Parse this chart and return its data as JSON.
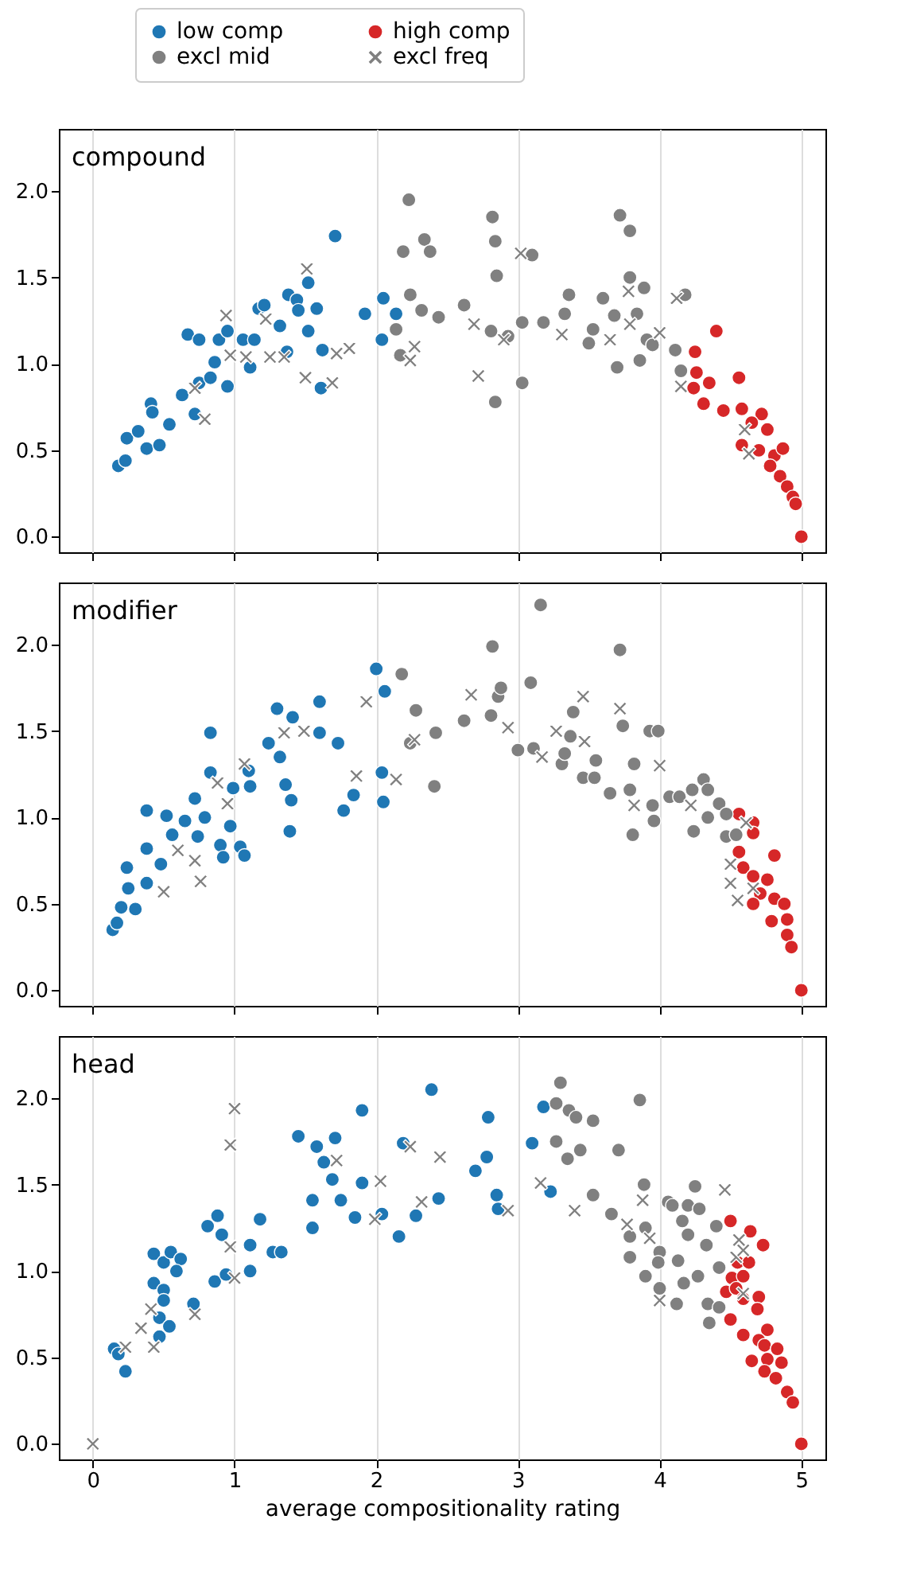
{
  "chart_data": [
    {
      "type": "scatter",
      "title": "compound",
      "legend": "top",
      "grid": "x",
      "tick_labels": "y",
      "xlim": [
        -0.24,
        5.17
      ],
      "ylim": [
        -0.09,
        2.36
      ],
      "xticks": [
        0,
        1,
        2,
        3,
        4,
        5
      ],
      "yticks": [
        {
          "value": 0,
          "label": "0.0"
        },
        {
          "value": 0.5,
          "label": "0.5"
        },
        {
          "value": 1,
          "label": "1.0"
        },
        {
          "value": 1.5,
          "label": "1.5"
        },
        {
          "value": 2,
          "label": "2.0"
        }
      ],
      "series": [
        {
          "name": "low comp",
          "color": "#1f77b4",
          "marker": "circle",
          "x": [
            0.18,
            0.23,
            0.24,
            0.32,
            0.38,
            0.47,
            0.41,
            0.42,
            0.54,
            0.63,
            0.72,
            0.75,
            0.83,
            0.86,
            0.95,
            0.67,
            0.75,
            0.89,
            0.95,
            1.06,
            1.11,
            1.14,
            1.17,
            1.21,
            1.32,
            1.38,
            1.44,
            1.45,
            1.52,
            1.58,
            1.52,
            1.62,
            1.61,
            1.71,
            1.37,
            1.92,
            2.05,
            2.14,
            2.04
          ],
          "values": [
            0.41,
            0.44,
            0.57,
            0.61,
            0.51,
            0.53,
            0.77,
            0.72,
            0.65,
            0.82,
            0.71,
            0.89,
            0.92,
            1.01,
            0.87,
            1.17,
            1.14,
            1.14,
            1.19,
            1.14,
            0.98,
            1.14,
            1.32,
            1.34,
            1.22,
            1.4,
            1.37,
            1.31,
            1.47,
            1.32,
            1.19,
            1.08,
            0.86,
            1.74,
            1.07,
            1.29,
            1.38,
            1.29,
            1.14
          ]
        },
        {
          "name": "high comp",
          "color": "#d62728",
          "marker": "circle",
          "x": [
            4.25,
            4.4,
            4.26,
            4.35,
            4.24,
            4.31,
            4.45,
            4.56,
            4.58,
            4.72,
            4.65,
            4.76,
            4.58,
            4.7,
            4.81,
            4.87,
            4.78,
            4.85,
            4.9,
            4.94,
            4.96,
            5.0
          ],
          "values": [
            1.07,
            1.19,
            0.95,
            0.89,
            0.86,
            0.77,
            0.73,
            0.92,
            0.74,
            0.71,
            0.66,
            0.62,
            0.53,
            0.5,
            0.47,
            0.51,
            0.41,
            0.35,
            0.29,
            0.23,
            0.19,
            0.0
          ]
        },
        {
          "name": "excl mid",
          "color": "#808080",
          "marker": "circle",
          "x": [
            2.23,
            2.19,
            2.34,
            2.38,
            2.24,
            2.32,
            2.44,
            2.14,
            2.17,
            2.62,
            2.82,
            2.84,
            2.85,
            2.81,
            2.93,
            2.84,
            3.03,
            3.03,
            3.1,
            3.18,
            3.33,
            3.36,
            3.53,
            3.5,
            3.6,
            3.68,
            3.7,
            3.72,
            3.79,
            3.79,
            3.89,
            3.84,
            3.86,
            3.91,
            3.95,
            4.11,
            4.18,
            4.15
          ],
          "values": [
            1.95,
            1.65,
            1.72,
            1.65,
            1.4,
            1.31,
            1.27,
            1.2,
            1.05,
            1.34,
            1.85,
            1.71,
            1.51,
            1.19,
            1.16,
            0.78,
            1.24,
            0.89,
            1.63,
            1.24,
            1.29,
            1.4,
            1.2,
            1.12,
            1.38,
            1.28,
            0.98,
            1.86,
            1.77,
            1.5,
            1.44,
            1.29,
            1.02,
            1.14,
            1.11,
            1.08,
            1.4,
            0.96
          ]
        },
        {
          "name": "excl freq",
          "color": "#808080",
          "marker": "cross",
          "x": [
            0.72,
            0.79,
            0.94,
            0.97,
            1.08,
            1.22,
            1.25,
            1.35,
            1.51,
            1.5,
            1.69,
            1.72,
            1.81,
            2.27,
            2.24,
            2.69,
            2.72,
            2.9,
            3.02,
            3.31,
            3.65,
            3.78,
            3.79,
            4.0,
            4.12,
            4.15,
            4.6,
            4.63
          ],
          "values": [
            0.86,
            0.68,
            1.28,
            1.05,
            1.04,
            1.26,
            1.04,
            1.04,
            1.55,
            0.92,
            0.89,
            1.06,
            1.09,
            1.1,
            1.02,
            1.23,
            0.93,
            1.14,
            1.64,
            1.17,
            1.14,
            1.42,
            1.23,
            1.18,
            1.38,
            0.87,
            0.62,
            0.48
          ]
        }
      ]
    },
    {
      "type": "scatter",
      "title": "modifier",
      "grid": "x",
      "tick_labels": "y",
      "xlim": [
        -0.24,
        5.17
      ],
      "ylim": [
        -0.09,
        2.36
      ],
      "xticks": [
        0,
        1,
        2,
        3,
        4,
        5
      ],
      "yticks": [
        {
          "value": 0,
          "label": "0.0"
        },
        {
          "value": 0.5,
          "label": "0.5"
        },
        {
          "value": 1,
          "label": "1.0"
        },
        {
          "value": 1.5,
          "label": "1.5"
        },
        {
          "value": 2,
          "label": "2.0"
        }
      ],
      "series": [
        {
          "color": "#1f77b4",
          "marker": "circle",
          "x": [
            0.14,
            0.17,
            0.2,
            0.25,
            0.3,
            0.24,
            0.38,
            0.38,
            0.38,
            0.48,
            0.52,
            0.56,
            0.65,
            0.72,
            0.74,
            0.79,
            0.83,
            0.83,
            0.9,
            0.92,
            0.97,
            0.99,
            1.04,
            1.07,
            1.1,
            1.11,
            1.24,
            1.3,
            1.32,
            1.36,
            1.4,
            1.39,
            1.41,
            1.6,
            1.6,
            1.73,
            1.77,
            1.84,
            2.0,
            2.06,
            2.04,
            2.05
          ],
          "values": [
            0.35,
            0.39,
            0.48,
            0.59,
            0.47,
            0.71,
            0.62,
            0.82,
            1.04,
            0.73,
            1.01,
            0.9,
            0.98,
            1.11,
            0.89,
            1.0,
            1.49,
            1.26,
            0.84,
            0.77,
            0.95,
            1.17,
            0.83,
            0.78,
            1.27,
            1.18,
            1.43,
            1.63,
            1.35,
            1.19,
            1.1,
            0.92,
            1.58,
            1.49,
            1.67,
            1.43,
            1.04,
            1.13,
            1.86,
            1.73,
            1.26,
            1.09
          ]
        },
        {
          "color": "#d62728",
          "marker": "circle",
          "x": [
            4.56,
            4.66,
            4.66,
            4.56,
            4.81,
            4.59,
            4.66,
            4.76,
            4.71,
            4.81,
            4.66,
            4.88,
            4.79,
            4.9,
            4.9,
            4.93,
            5.0
          ],
          "values": [
            1.02,
            0.97,
            0.91,
            0.8,
            0.78,
            0.71,
            0.66,
            0.64,
            0.56,
            0.53,
            0.5,
            0.5,
            0.4,
            0.41,
            0.32,
            0.25,
            0.0
          ]
        },
        {
          "color": "#808080",
          "marker": "circle",
          "x": [
            2.18,
            2.28,
            2.24,
            2.42,
            2.41,
            2.62,
            2.81,
            2.82,
            2.86,
            2.88,
            3.0,
            3.09,
            3.11,
            3.16,
            3.31,
            3.33,
            3.37,
            3.39,
            3.46,
            3.55,
            3.54,
            3.65,
            3.72,
            3.74,
            3.81,
            3.79,
            3.82,
            3.93,
            3.99,
            3.95,
            3.96,
            4.07,
            4.14,
            4.23,
            4.24,
            4.31,
            4.34,
            4.34,
            4.42,
            4.47,
            4.47,
            4.54
          ],
          "values": [
            1.83,
            1.62,
            1.43,
            1.49,
            1.18,
            1.56,
            1.59,
            1.99,
            1.7,
            1.75,
            1.39,
            1.78,
            1.4,
            2.23,
            1.31,
            1.37,
            1.47,
            1.61,
            1.23,
            1.33,
            1.23,
            1.14,
            1.97,
            1.53,
            0.9,
            1.16,
            1.31,
            1.5,
            1.5,
            1.07,
            0.98,
            1.12,
            1.12,
            1.16,
            0.92,
            1.22,
            1.16,
            1.0,
            1.08,
            1.02,
            0.89,
            0.9
          ]
        },
        {
          "color": "#808080",
          "marker": "cross",
          "x": [
            0.5,
            0.6,
            0.72,
            0.76,
            0.88,
            0.95,
            1.07,
            1.35,
            1.49,
            1.86,
            1.93,
            2.14,
            2.27,
            2.67,
            2.93,
            3.17,
            3.27,
            3.46,
            3.47,
            3.72,
            3.82,
            4.0,
            4.22,
            4.5,
            4.5,
            4.55,
            4.61,
            4.66
          ],
          "values": [
            0.57,
            0.81,
            0.75,
            0.63,
            1.2,
            1.08,
            1.31,
            1.49,
            1.5,
            1.24,
            1.67,
            1.22,
            1.45,
            1.71,
            1.52,
            1.35,
            1.5,
            1.7,
            1.44,
            1.63,
            1.07,
            1.3,
            1.07,
            0.73,
            0.62,
            0.52,
            0.97,
            0.59
          ]
        }
      ]
    },
    {
      "type": "scatter",
      "title": "head",
      "xlabel": "average compositionality rating",
      "grid": "x",
      "xlim": [
        -0.24,
        5.17
      ],
      "ylim": [
        -0.09,
        2.36
      ],
      "xticks": [
        0,
        1,
        2,
        3,
        4,
        5
      ],
      "yticks": [
        {
          "value": 0,
          "label": "0.0"
        },
        {
          "value": 0.5,
          "label": "0.5"
        },
        {
          "value": 1,
          "label": "1.0"
        },
        {
          "value": 1.5,
          "label": "1.5"
        },
        {
          "value": 2,
          "label": "2.0"
        }
      ],
      "series": [
        {
          "color": "#1f77b4",
          "marker": "circle",
          "x": [
            0.15,
            0.18,
            0.23,
            0.43,
            0.43,
            0.5,
            0.55,
            0.62,
            0.59,
            0.5,
            0.5,
            0.47,
            0.54,
            0.47,
            0.71,
            0.81,
            0.88,
            0.91,
            0.86,
            0.94,
            1.11,
            1.11,
            1.18,
            1.27,
            1.33,
            1.45,
            1.55,
            1.55,
            1.58,
            1.63,
            1.69,
            1.71,
            1.75,
            1.85,
            1.9,
            1.9,
            2.04,
            2.16,
            2.19,
            2.28,
            2.44,
            2.39,
            2.7,
            2.78,
            2.79,
            2.85,
            2.86,
            3.1,
            3.18,
            3.23
          ],
          "values": [
            0.55,
            0.52,
            0.42,
            1.1,
            0.93,
            1.05,
            1.11,
            1.07,
            1.0,
            0.89,
            0.83,
            0.73,
            0.68,
            0.62,
            0.81,
            1.26,
            1.32,
            1.21,
            0.94,
            0.98,
            1.15,
            1.0,
            1.3,
            1.11,
            1.11,
            1.78,
            1.41,
            1.25,
            1.72,
            1.63,
            1.53,
            1.77,
            1.41,
            1.31,
            1.93,
            1.51,
            1.33,
            1.2,
            1.74,
            1.32,
            1.42,
            2.05,
            1.58,
            1.66,
            1.89,
            1.44,
            1.36,
            1.74,
            1.95,
            1.46
          ]
        },
        {
          "color": "#d62728",
          "marker": "circle",
          "x": [
            4.5,
            4.64,
            4.73,
            4.55,
            4.63,
            4.51,
            4.59,
            4.47,
            4.54,
            4.59,
            4.7,
            4.69,
            4.5,
            4.59,
            4.76,
            4.7,
            4.74,
            4.83,
            4.65,
            4.76,
            4.86,
            4.74,
            4.82,
            4.9,
            4.94,
            5.0
          ],
          "values": [
            1.29,
            1.23,
            1.15,
            1.05,
            1.05,
            0.96,
            0.97,
            0.88,
            0.9,
            0.84,
            0.85,
            0.78,
            0.72,
            0.63,
            0.66,
            0.6,
            0.57,
            0.55,
            0.48,
            0.49,
            0.47,
            0.42,
            0.38,
            0.3,
            0.24,
            0.0
          ]
        },
        {
          "color": "#808080",
          "marker": "circle",
          "x": [
            3.3,
            3.27,
            3.36,
            3.41,
            3.53,
            3.86,
            3.27,
            3.44,
            3.35,
            3.71,
            3.53,
            3.66,
            3.89,
            3.79,
            3.9,
            3.79,
            3.9,
            4.0,
            4.0,
            3.99,
            4.06,
            4.09,
            4.13,
            4.12,
            4.16,
            4.2,
            4.17,
            4.2,
            4.25,
            4.28,
            4.27,
            4.33,
            4.34,
            4.35,
            4.42,
            4.42,
            4.4
          ],
          "values": [
            2.09,
            1.97,
            1.93,
            1.89,
            1.87,
            1.99,
            1.75,
            1.7,
            1.65,
            1.7,
            1.44,
            1.33,
            1.5,
            1.2,
            1.25,
            1.08,
            0.97,
            1.11,
            0.9,
            1.05,
            1.4,
            1.38,
            1.06,
            0.81,
            1.29,
            1.21,
            0.93,
            1.38,
            1.49,
            1.36,
            0.97,
            1.15,
            0.81,
            0.7,
            0.79,
            1.02,
            1.26
          ]
        },
        {
          "color": "#808080",
          "marker": "cross",
          "x": [
            0.0,
            0.23,
            0.34,
            0.41,
            0.43,
            0.72,
            0.97,
            1.0,
            0.97,
            1.0,
            1.72,
            1.99,
            2.03,
            2.24,
            2.32,
            2.45,
            2.93,
            3.16,
            3.4,
            3.77,
            3.88,
            3.93,
            4.0,
            4.46,
            4.54,
            4.59,
            4.59,
            4.56
          ],
          "values": [
            0.0,
            0.56,
            0.67,
            0.78,
            0.56,
            0.75,
            1.14,
            0.96,
            1.73,
            1.94,
            1.64,
            1.3,
            1.52,
            1.72,
            1.4,
            1.66,
            1.35,
            1.51,
            1.35,
            1.27,
            1.41,
            1.19,
            0.83,
            1.47,
            1.08,
            1.12,
            0.87,
            1.18
          ]
        }
      ]
    }
  ]
}
